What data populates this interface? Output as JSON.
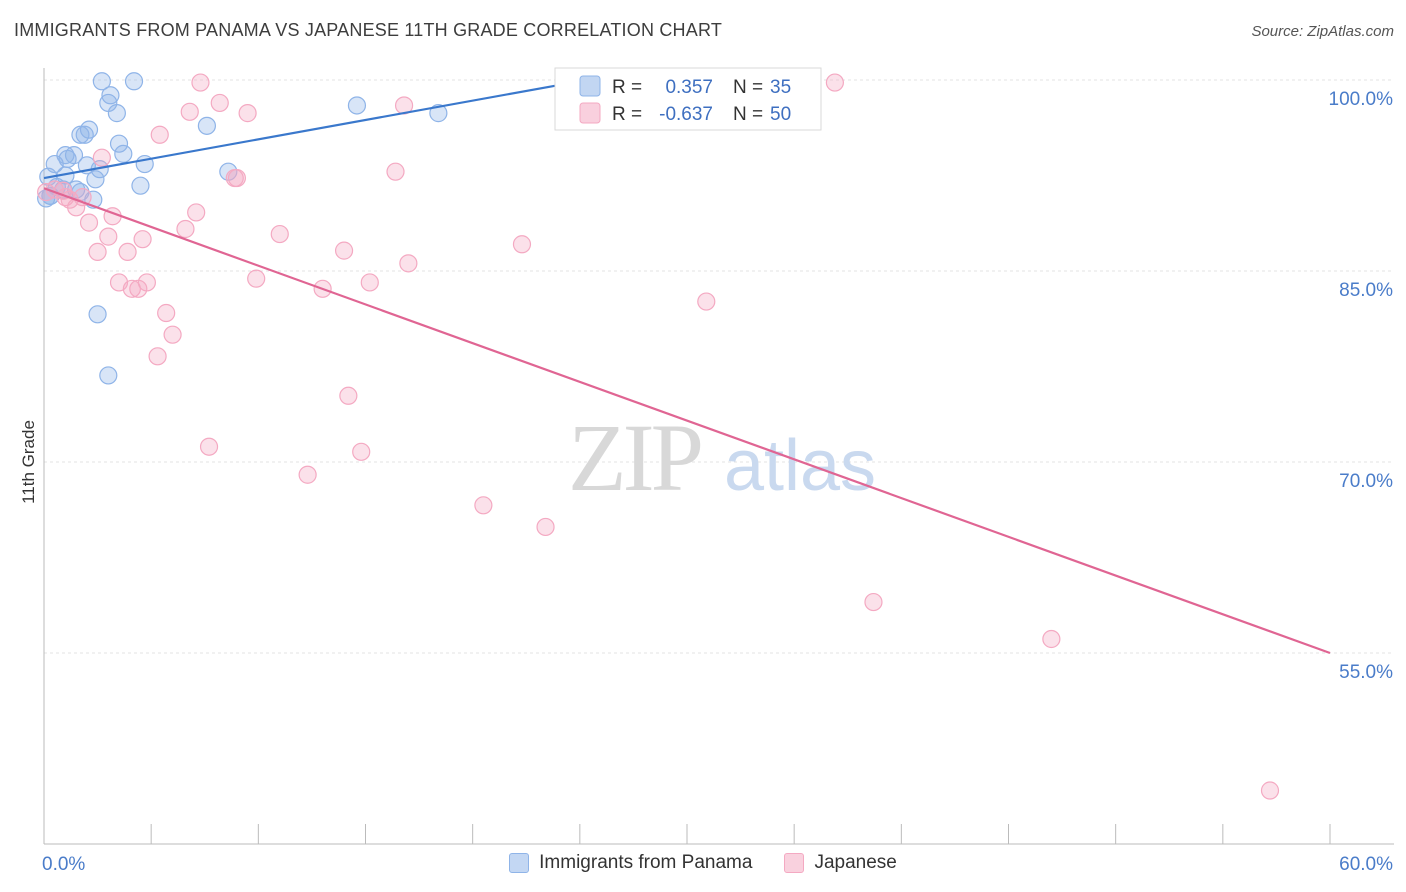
{
  "title": "IMMIGRANTS FROM PANAMA VS JAPANESE 11TH GRADE CORRELATION CHART",
  "source": "Source: ZipAtlas.com",
  "watermark": {
    "zip": "ZIP",
    "atlas": "atlas"
  },
  "chart_data": {
    "type": "scatter",
    "xlabel": "",
    "ylabel": "11th Grade",
    "xlim": [
      0,
      60
    ],
    "ylim": [
      40,
      100
    ],
    "x_tick_labels": [
      "0.0%",
      "60.0%"
    ],
    "y_ticks": [
      55,
      70,
      85,
      100
    ],
    "y_tick_labels": [
      "55.0%",
      "70.0%",
      "85.0%",
      "100.0%"
    ],
    "series": [
      {
        "name": "Immigrants from Panama",
        "color": "#8fb4e8",
        "line_color": "#3a78cc",
        "R": "0.357",
        "N": "35",
        "trend": [
          [
            0,
            92.3
          ],
          [
            25,
            99.9
          ]
        ],
        "points": [
          [
            2.7,
            99.9
          ],
          [
            4.2,
            99.9
          ],
          [
            3.1,
            98.8
          ],
          [
            3.0,
            98.2
          ],
          [
            3.4,
            97.4
          ],
          [
            14.6,
            98.0
          ],
          [
            18.4,
            97.4
          ],
          [
            7.6,
            96.4
          ],
          [
            2.1,
            96.1
          ],
          [
            1.7,
            95.7
          ],
          [
            1.9,
            95.7
          ],
          [
            3.5,
            95.0
          ],
          [
            3.7,
            94.2
          ],
          [
            1.0,
            94.1
          ],
          [
            1.4,
            94.1
          ],
          [
            1.1,
            93.8
          ],
          [
            0.5,
            93.4
          ],
          [
            2.0,
            93.3
          ],
          [
            4.7,
            93.4
          ],
          [
            2.6,
            93.0
          ],
          [
            8.6,
            92.8
          ],
          [
            0.2,
            92.4
          ],
          [
            1.0,
            92.5
          ],
          [
            2.4,
            92.2
          ],
          [
            4.5,
            91.7
          ],
          [
            0.6,
            91.6
          ],
          [
            0.9,
            91.4
          ],
          [
            1.5,
            91.4
          ],
          [
            1.7,
            91.2
          ],
          [
            0.3,
            90.9
          ],
          [
            0.1,
            90.7
          ],
          [
            2.3,
            90.6
          ],
          [
            0.3,
            90.9
          ],
          [
            2.5,
            81.6
          ],
          [
            3.0,
            76.8
          ]
        ]
      },
      {
        "name": "Japanese",
        "color": "#f4a9c2",
        "line_color": "#e06593",
        "R": "-0.637",
        "N": "50",
        "trend": [
          [
            0,
            91.5
          ],
          [
            60,
            55.0
          ]
        ],
        "points": [
          [
            7.3,
            99.8
          ],
          [
            36.9,
            99.8
          ],
          [
            8.2,
            98.2
          ],
          [
            16.8,
            98.0
          ],
          [
            6.8,
            97.5
          ],
          [
            9.5,
            97.4
          ],
          [
            5.4,
            95.7
          ],
          [
            2.7,
            93.9
          ],
          [
            16.4,
            92.8
          ],
          [
            8.9,
            92.3
          ],
          [
            9.0,
            92.3
          ],
          [
            0.1,
            91.2
          ],
          [
            0.9,
            91.3
          ],
          [
            0.5,
            91.4
          ],
          [
            1.0,
            90.8
          ],
          [
            1.2,
            90.6
          ],
          [
            1.8,
            90.8
          ],
          [
            1.5,
            90.0
          ],
          [
            7.1,
            89.6
          ],
          [
            3.2,
            89.3
          ],
          [
            2.1,
            88.8
          ],
          [
            6.6,
            88.3
          ],
          [
            11.0,
            87.9
          ],
          [
            3.0,
            87.7
          ],
          [
            4.6,
            87.5
          ],
          [
            22.3,
            87.1
          ],
          [
            14.0,
            86.6
          ],
          [
            2.5,
            86.5
          ],
          [
            3.9,
            86.5
          ],
          [
            17.0,
            85.6
          ],
          [
            9.9,
            84.4
          ],
          [
            3.5,
            84.1
          ],
          [
            4.8,
            84.1
          ],
          [
            15.2,
            84.1
          ],
          [
            13.0,
            83.6
          ],
          [
            4.1,
            83.6
          ],
          [
            4.4,
            83.6
          ],
          [
            30.9,
            82.6
          ],
          [
            5.7,
            81.7
          ],
          [
            6.0,
            80.0
          ],
          [
            5.3,
            78.3
          ],
          [
            14.2,
            75.2
          ],
          [
            7.7,
            71.2
          ],
          [
            14.8,
            70.8
          ],
          [
            12.3,
            69.0
          ],
          [
            20.5,
            66.6
          ],
          [
            23.4,
            64.9
          ],
          [
            38.7,
            59.0
          ],
          [
            47.0,
            56.1
          ],
          [
            57.2,
            44.2
          ]
        ]
      }
    ]
  },
  "legend_box": {
    "rows": [
      {
        "r_label": "R =",
        "r_value": "0.357",
        "n_label": "N =",
        "n_value": "35"
      },
      {
        "r_label": "R =",
        "r_value": "-0.637",
        "n_label": "N =",
        "n_value": "50"
      }
    ]
  },
  "bottom_legend": [
    {
      "label": "Immigrants from Panama",
      "color": "#8fb4e8"
    },
    {
      "label": "Japanese",
      "color": "#f4a9c2"
    }
  ]
}
